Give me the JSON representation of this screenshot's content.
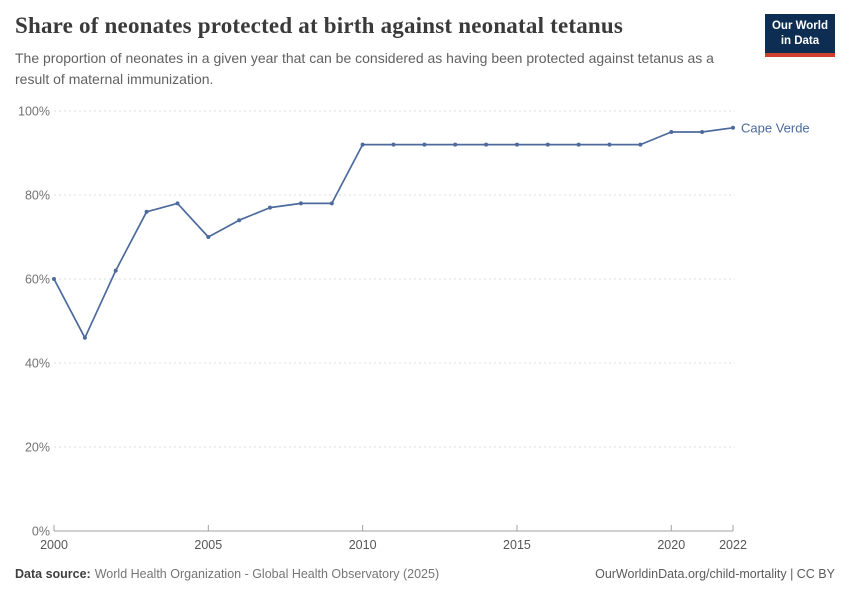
{
  "header": {
    "title": "Share of neonates protected at birth against neonatal tetanus",
    "subtitle": "The proportion of neonates in a given year that can be considered as having been protected against tetanus as a result of maternal immunization.",
    "logo": {
      "line1": "Our World",
      "line2": "in Data",
      "bg_color": "#0d2e52",
      "stripe_color": "#d0402e"
    }
  },
  "chart_data": {
    "type": "line",
    "title": "Share of neonates protected at birth against neonatal tetanus",
    "x": [
      2000,
      2001,
      2002,
      2003,
      2004,
      2005,
      2006,
      2007,
      2008,
      2009,
      2010,
      2011,
      2012,
      2013,
      2014,
      2015,
      2016,
      2017,
      2018,
      2019,
      2020,
      2021,
      2022
    ],
    "series": [
      {
        "name": "Cape Verde",
        "color": "#4C6A9C",
        "values": [
          60,
          46,
          62,
          76,
          78,
          70,
          74,
          77,
          78,
          78,
          92,
          92,
          92,
          92,
          92,
          92,
          92,
          92,
          92,
          92,
          95,
          95,
          96
        ]
      }
    ],
    "xlabel": "",
    "ylabel": "",
    "xlim": [
      2000,
      2022
    ],
    "ylim": [
      0,
      100
    ],
    "x_ticks": [
      2000,
      2005,
      2010,
      2015,
      2020,
      2022
    ],
    "y_ticks": [
      0,
      20,
      40,
      60,
      80,
      100
    ],
    "y_tick_suffix": "%",
    "grid": "horizontal-dashed",
    "legend_position": "end-of-line-label"
  },
  "footer": {
    "datasource_label": "Data source:",
    "datasource_value": "World Health Organization - Global Health Observatory (2025)",
    "link": "OurWorldinData.org/child-mortality | CC BY"
  },
  "colors": {
    "accent_line": "#4C6A9C",
    "grid": "#dcdcdc",
    "axis": "#a1a1a1",
    "y_tick_text": "#737373",
    "x_tick_text": "#565656",
    "title_text": "#3a3a3a",
    "subtitle_text": "#616161"
  }
}
